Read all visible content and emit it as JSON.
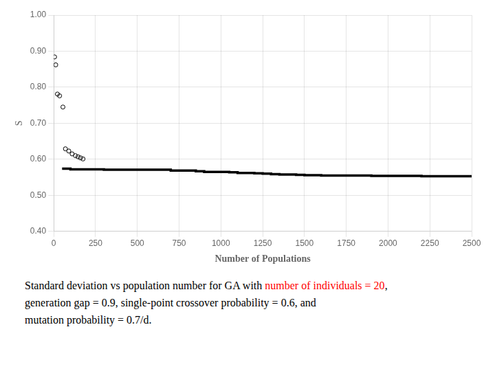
{
  "chart_data": {
    "type": "line",
    "xlabel": "Number of Populations",
    "ylabel": "S",
    "xlim": [
      0,
      2500
    ],
    "ylim": [
      0.4,
      1.0
    ],
    "xticks": [
      0,
      250,
      500,
      750,
      1000,
      1250,
      1500,
      1750,
      2000,
      2250,
      2500
    ],
    "yticks": [
      {
        "value": 0.4,
        "label": "0.40"
      },
      {
        "value": 0.5,
        "label": "0.50"
      },
      {
        "value": 0.6,
        "label": "0.60"
      },
      {
        "value": 0.7,
        "label": "0.70"
      },
      {
        "value": 0.8,
        "label": "0.80"
      },
      {
        "value": 0.9,
        "label": "0.90"
      },
      {
        "value": 1.0,
        "label": "1.00"
      }
    ],
    "grid": true,
    "series": [
      {
        "type": "line",
        "line_style": "step",
        "color": "#000000",
        "x": [
          50,
          100,
          200,
          250,
          300,
          500,
          600,
          700,
          750,
          800,
          850,
          900,
          1000,
          1050,
          1100,
          1200,
          1250,
          1300,
          1350,
          1400,
          1450,
          1500,
          1600,
          1700,
          1750,
          1800,
          1900,
          2000,
          2100,
          2200,
          2250,
          2300,
          2400,
          2500
        ],
        "values": [
          0.574,
          0.574,
          0.572,
          0.572,
          0.572,
          0.571,
          0.571,
          0.571,
          0.569,
          0.569,
          0.569,
          0.567,
          0.565,
          0.565,
          0.564,
          0.562,
          0.561,
          0.56,
          0.559,
          0.558,
          0.558,
          0.557,
          0.556,
          0.555,
          0.555,
          0.555,
          0.555,
          0.554,
          0.554,
          0.554,
          0.553,
          0.553,
          0.553,
          0.553
        ]
      },
      {
        "type": "scatter",
        "marker": "open_circle",
        "color": "#000000",
        "x": [
          5,
          12,
          22,
          35,
          55,
          70,
          90,
          110,
          130,
          145,
          160,
          175
        ],
        "values": [
          0.884,
          0.862,
          0.781,
          0.776,
          0.745,
          0.629,
          0.623,
          0.615,
          0.61,
          0.607,
          0.604,
          0.601
        ]
      }
    ],
    "caption": [
      [
        {
          "text": "Standard deviation vs population number for GA with "
        },
        {
          "text": "number of individuals = 20",
          "color": "red"
        },
        {
          "text": ","
        }
      ],
      [
        {
          "text": "generation gap = 0.9, single-point crossover probability = 0.6, and"
        }
      ],
      [
        {
          "text": "mutation probability = 0.7/d."
        }
      ]
    ]
  }
}
